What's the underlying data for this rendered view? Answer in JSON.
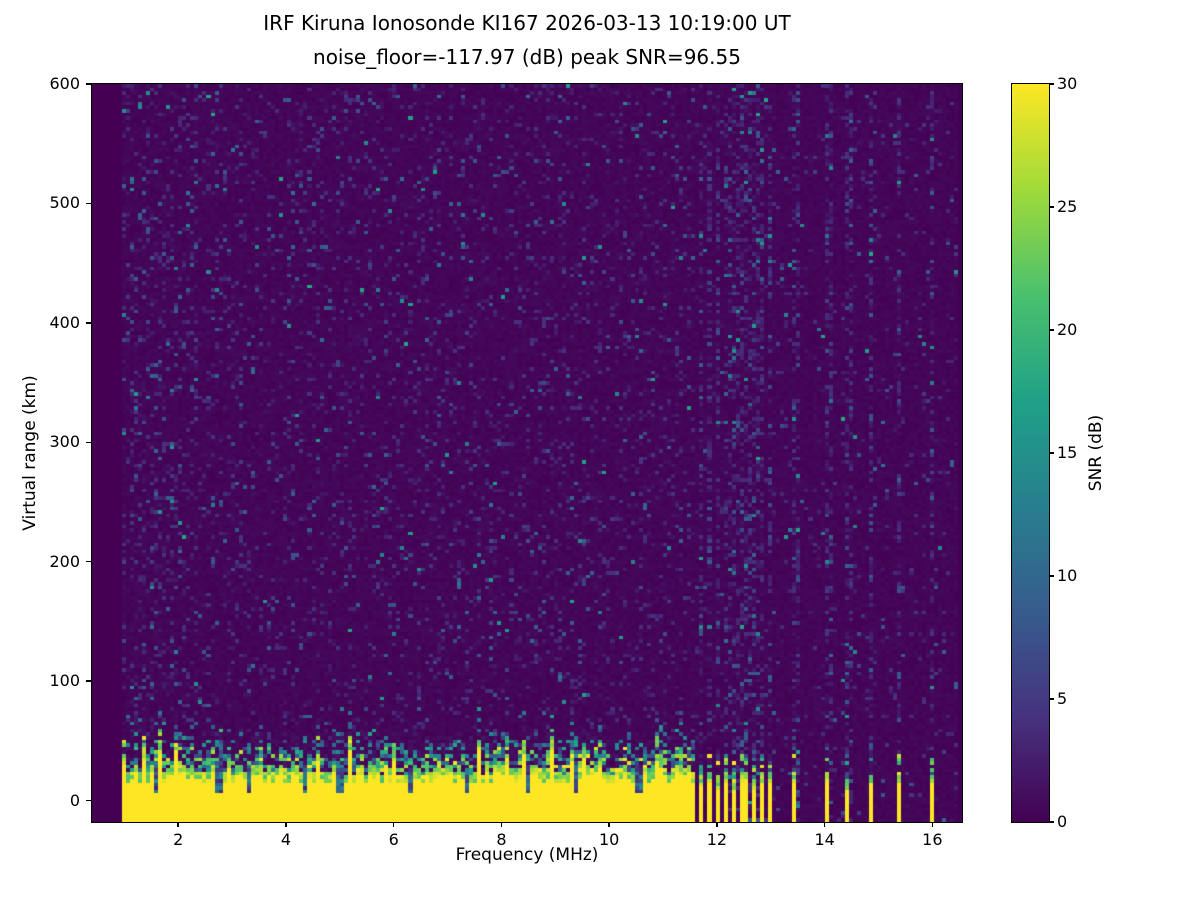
{
  "figure": {
    "title_line1": "IRF Kiruna Ionosonde KI167 2026-03-13 10:19:00  UT",
    "title_line2": "noise_floor=-117.97 (dB) peak SNR=96.55"
  },
  "chart_data": {
    "type": "heatmap",
    "title": "IRF Kiruna Ionosonde KI167 2026-03-13 10:19:00  UT",
    "subtitle": "noise_floor=-117.97 (dB) peak SNR=96.55",
    "station": "IRF Kiruna Ionosonde KI167",
    "timestamp_ut": "2026-03-13 10:19:00",
    "noise_floor_db": -117.97,
    "peak_snr_db": 96.55,
    "xlabel": "Frequency (MHz)",
    "ylabel": "Virtual range (km)",
    "xlim": [
      0.4,
      16.55
    ],
    "ylim": [
      -18,
      600
    ],
    "x_ticks": [
      2,
      4,
      6,
      8,
      10,
      12,
      14,
      16
    ],
    "y_ticks": [
      0,
      100,
      200,
      300,
      400,
      500,
      600
    ],
    "grid": false,
    "colorbar": {
      "label": "SNR (dB)",
      "ticks": [
        0,
        5,
        10,
        15,
        20,
        25,
        30
      ],
      "range": [
        0,
        30
      ],
      "colormap": "viridis"
    },
    "content": {
      "background_snr_db": 0,
      "ground_echo": {
        "freq_start_mhz": 0.95,
        "freq_continuous_to_mhz": 11.62,
        "range_km": [
          -18,
          30
        ],
        "snr_db": 30
      },
      "transition_speckle_km": [
        20,
        48
      ],
      "intermittent_bars_mhz": [
        [
          11.66,
          11.74
        ],
        [
          11.82,
          11.9
        ],
        [
          11.98,
          12.06
        ],
        [
          12.14,
          12.22
        ],
        [
          12.3,
          12.38
        ],
        [
          12.46,
          12.54
        ],
        [
          12.62,
          12.7
        ],
        [
          12.78,
          12.86
        ],
        [
          12.94,
          13.02
        ],
        [
          13.42,
          13.5
        ],
        [
          14.02,
          14.1
        ],
        [
          14.4,
          14.47
        ],
        [
          14.84,
          14.91
        ],
        [
          15.36,
          15.44
        ],
        [
          15.95,
          16.03
        ]
      ],
      "band_notches_mhz": [
        1.6,
        2.75,
        3.3,
        4.35,
        5.0,
        6.3,
        7.35,
        8.5,
        9.4,
        10.55
      ]
    }
  },
  "colors": {
    "viridis_stops": [
      "#440154",
      "#46327e",
      "#365c8d",
      "#277f8e",
      "#1fa187",
      "#4ac16d",
      "#a0da39",
      "#fde725"
    ],
    "figure_background": "#ffffff",
    "text": "#000000"
  }
}
